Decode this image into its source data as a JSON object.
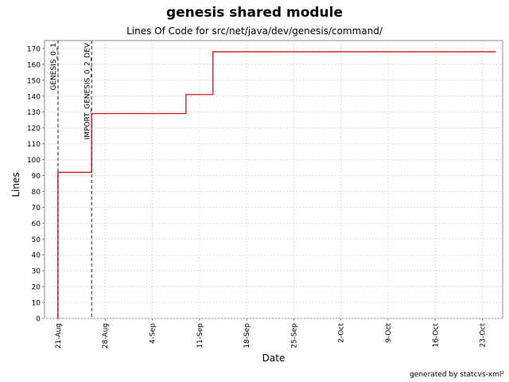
{
  "chart_data": {
    "type": "line",
    "title": "genesis shared module",
    "subtitle": "Lines Of Code for src/net/java/dev/genesis/command/",
    "xlabel": "Date",
    "ylabel": "Lines",
    "footer": "generated by statcvs-xml²",
    "ylim": [
      0,
      175
    ],
    "xlim": [
      "2005-08-19",
      "2005-10-26"
    ],
    "yticks": [
      "0",
      "10",
      "20",
      "30",
      "40",
      "50",
      "60",
      "70",
      "80",
      "90",
      "100",
      "110",
      "120",
      "130",
      "140",
      "150",
      "160",
      "170"
    ],
    "xticks": [
      {
        "date": "2005-08-21",
        "label": "21-Aug"
      },
      {
        "date": "2005-08-28",
        "label": "28-Aug"
      },
      {
        "date": "2005-09-04",
        "label": "4-Sep"
      },
      {
        "date": "2005-09-11",
        "label": "11-Sep"
      },
      {
        "date": "2005-09-18",
        "label": "18-Sep"
      },
      {
        "date": "2005-09-25",
        "label": "25-Sep"
      },
      {
        "date": "2005-10-02",
        "label": "2-Oct"
      },
      {
        "date": "2005-10-09",
        "label": "9-Oct"
      },
      {
        "date": "2005-10-16",
        "label": "16-Oct"
      },
      {
        "date": "2005-10-23",
        "label": "23-Oct"
      }
    ],
    "grid": true,
    "step": true,
    "series": [
      {
        "color": "#cc0000",
        "points": [
          {
            "x": "2005-08-21",
            "y": 0
          },
          {
            "x": "2005-08-21",
            "y": 92
          },
          {
            "x": "2005-08-26",
            "y": 92
          },
          {
            "x": "2005-08-26",
            "y": 129
          },
          {
            "x": "2005-09-09",
            "y": 129
          },
          {
            "x": "2005-09-09",
            "y": 141
          },
          {
            "x": "2005-09-13",
            "y": 141
          },
          {
            "x": "2005-09-13",
            "y": 168
          },
          {
            "x": "2005-10-25",
            "y": 168
          }
        ]
      }
    ],
    "markers": [
      {
        "date": "2005-08-21",
        "label": "GENESIS_0_1"
      },
      {
        "date": "2005-08-26",
        "label": "IMPORT_GENESIS_0_2_DEV"
      }
    ]
  }
}
